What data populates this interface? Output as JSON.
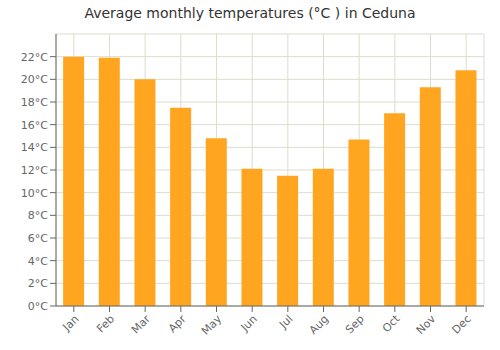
{
  "chart_data": {
    "type": "bar",
    "title": "Average monthly temperatures (°C ) in Ceduna",
    "categories": [
      "Jan",
      "Feb",
      "Mar",
      "Apr",
      "May",
      "Jun",
      "Jul",
      "Aug",
      "Sep",
      "Oct",
      "Nov",
      "Dec"
    ],
    "values": [
      22.0,
      21.9,
      20.0,
      17.5,
      14.8,
      12.1,
      11.5,
      12.1,
      14.7,
      17.0,
      19.3,
      20.8
    ],
    "color": "#FFA520",
    "ylim": [
      0,
      24
    ],
    "yticks": [
      {
        "value": 0,
        "label": "0°C"
      },
      {
        "value": 2,
        "label": "2°C"
      },
      {
        "value": 4,
        "label": "4°C"
      },
      {
        "value": 6,
        "label": "6°C"
      },
      {
        "value": 8,
        "label": "8°C"
      },
      {
        "value": 10,
        "label": "10°C"
      },
      {
        "value": 12,
        "label": "12°C"
      },
      {
        "value": 14,
        "label": "14°C"
      },
      {
        "value": 16,
        "label": "16°C"
      },
      {
        "value": 18,
        "label": "18°C"
      },
      {
        "value": 20,
        "label": "20°C"
      },
      {
        "value": 22,
        "label": "22°C"
      }
    ],
    "grid": true
  }
}
